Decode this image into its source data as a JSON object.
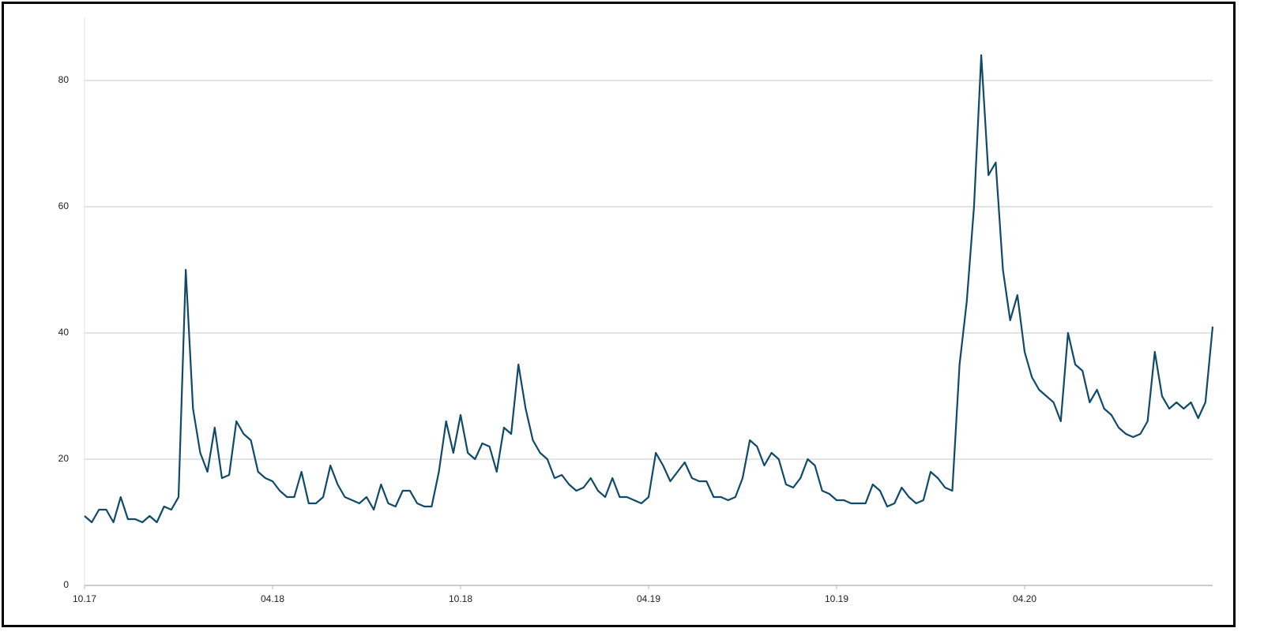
{
  "chart_data": {
    "type": "line",
    "categories": [
      "10.17",
      null,
      null,
      null,
      null,
      null,
      null,
      null,
      null,
      null,
      null,
      null,
      null,
      null,
      null,
      null,
      null,
      null,
      null,
      null,
      null,
      null,
      null,
      null,
      null,
      null,
      "04.18",
      null,
      null,
      null,
      null,
      null,
      null,
      null,
      null,
      null,
      null,
      null,
      null,
      null,
      null,
      null,
      null,
      null,
      null,
      null,
      null,
      null,
      null,
      null,
      null,
      null,
      "10.18",
      null,
      null,
      null,
      null,
      null,
      null,
      null,
      null,
      null,
      null,
      null,
      null,
      null,
      null,
      null,
      null,
      null,
      null,
      null,
      null,
      null,
      null,
      null,
      null,
      null,
      "04.19",
      null,
      null,
      null,
      null,
      null,
      null,
      null,
      null,
      null,
      null,
      null,
      null,
      null,
      null,
      null,
      null,
      null,
      null,
      null,
      null,
      null,
      null,
      null,
      null,
      null,
      "10.19",
      null,
      null,
      null,
      null,
      null,
      null,
      null,
      null,
      null,
      null,
      null,
      null,
      null,
      null,
      null,
      null,
      null,
      null,
      null,
      null,
      null,
      null,
      null,
      null,
      null,
      "04.20",
      null,
      null,
      null,
      null,
      null,
      null,
      null,
      null,
      null,
      null,
      null,
      null,
      null,
      null,
      null,
      null,
      null,
      null,
      null,
      null,
      null,
      null,
      null,
      null,
      null,
      null
    ],
    "series": [
      {
        "name": null,
        "color": "#0f4a69",
        "values": [
          11,
          10,
          12,
          12,
          10,
          14,
          10.5,
          10.5,
          10,
          11,
          10,
          12.5,
          12,
          14,
          50,
          28,
          21,
          18,
          25,
          17,
          17.5,
          26,
          24,
          23,
          18,
          17,
          16.5,
          15,
          14,
          14,
          18,
          13,
          13,
          14,
          19,
          16,
          14,
          13.5,
          13,
          14,
          12,
          16,
          13,
          12.5,
          15,
          15,
          13,
          12.5,
          12.5,
          18,
          26,
          21,
          27,
          21,
          20,
          22.5,
          22,
          18,
          25,
          24,
          35,
          28,
          23,
          21,
          20,
          17,
          17.5,
          16,
          15,
          15.5,
          17,
          15,
          14,
          17,
          14,
          14,
          13.5,
          13,
          14,
          21,
          19,
          16.5,
          18,
          19.5,
          17,
          16.5,
          16.5,
          14,
          14,
          13.5,
          14,
          17,
          23,
          22,
          19,
          21,
          20,
          16,
          15.5,
          17,
          20,
          19,
          15,
          14.5,
          13.5,
          13.5,
          13,
          13,
          13,
          16,
          15,
          12.5,
          13,
          15.5,
          14,
          13,
          13.5,
          18,
          17,
          15.5,
          15,
          35,
          45,
          60,
          84,
          65,
          67,
          50,
          42,
          46,
          37,
          33,
          31,
          30,
          29,
          26,
          40,
          35,
          34,
          29,
          31,
          28,
          27,
          25,
          24,
          23.5,
          24,
          26,
          37,
          30,
          28,
          29,
          28,
          29,
          26.5,
          29,
          41
        ]
      }
    ],
    "ylim": [
      0,
      90
    ],
    "yticks": [
      0,
      20,
      40,
      60,
      80
    ],
    "grid": true
  }
}
